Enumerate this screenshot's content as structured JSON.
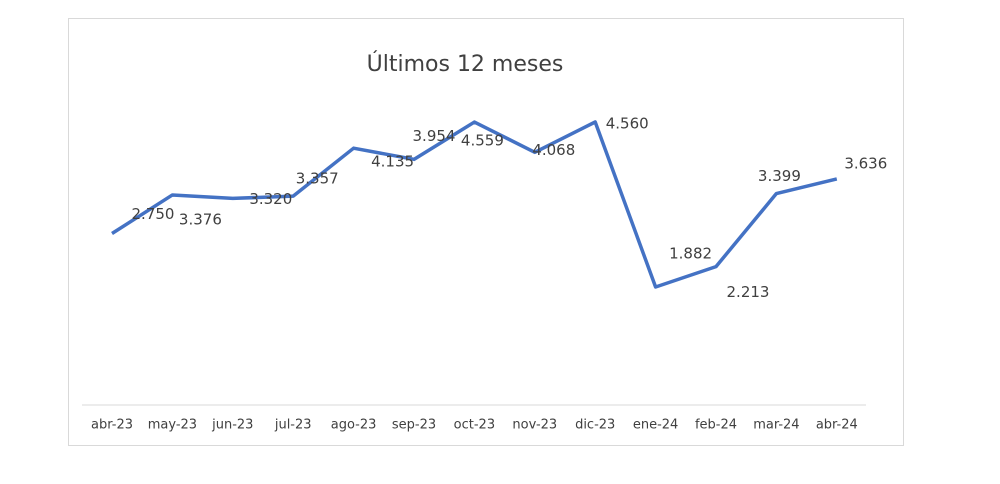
{
  "chart_data": {
    "type": "line",
    "title": "Últimos 12 meses",
    "categories": [
      "abr-23",
      "may-23",
      "jun-23",
      "jul-23",
      "ago-23",
      "sep-23",
      "oct-23",
      "nov-23",
      "dic-23",
      "ene-24",
      "feb-24",
      "mar-24",
      "abr-24"
    ],
    "series": [
      {
        "name": "Últimos 12 meses",
        "color": "#4472c4",
        "values": [
          2750,
          3376,
          3320,
          3357,
          4135,
          3954,
          4559,
          4068,
          4560,
          1882,
          2213,
          3399,
          3636
        ],
        "value_labels": [
          "2.750",
          "3.376",
          "3.320",
          "3.357",
          "4.135",
          "3.954",
          "4.559",
          "4.068",
          "4.560",
          "1.882",
          "2.213",
          "3.399",
          "3.636"
        ]
      }
    ]
  }
}
